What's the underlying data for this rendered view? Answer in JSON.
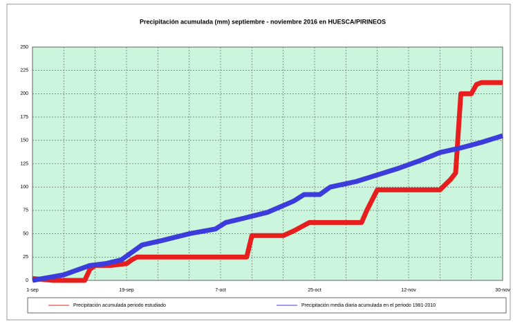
{
  "chart_data": {
    "type": "line",
    "title": "Precipitación acumulada (mm) septiembre - noviembre 2016 en HUESCA/PIRINEOS",
    "xlim": [
      0,
      90
    ],
    "xticks": [
      {
        "value": 0,
        "label": "1-sep"
      },
      {
        "value": 18,
        "label": "19-sep"
      },
      {
        "value": 36,
        "label": "7-oct"
      },
      {
        "value": 54,
        "label": "25-oct"
      },
      {
        "value": 72,
        "label": "12-nov"
      },
      {
        "value": 90,
        "label": "30-nov"
      }
    ],
    "xgrid": [
      6,
      12,
      24,
      30,
      42,
      48,
      60,
      66,
      78,
      84
    ],
    "ylim": [
      0,
      250
    ],
    "yticks": [
      0,
      25,
      50,
      75,
      100,
      125,
      150,
      175,
      200,
      225,
      250
    ],
    "grid": true,
    "series": [
      {
        "name": "Precipitación acumulada periodo estudiado",
        "color": "#e61e1e",
        "x": [
          0,
          2,
          4,
          8,
          10,
          11,
          12,
          15,
          18,
          19,
          20,
          41,
          42,
          48,
          50,
          53,
          63,
          64,
          66,
          78,
          80,
          81,
          82,
          84,
          85,
          86,
          90
        ],
        "values": [
          2,
          1,
          0,
          0,
          0,
          12,
          16,
          16,
          18,
          22,
          25,
          25,
          48,
          48,
          53,
          62,
          62,
          75,
          97,
          97,
          108,
          115,
          200,
          200,
          210,
          212,
          212
        ]
      },
      {
        "name": "Precipitación media diaria acumulada en el periodo 1981-2010",
        "color": "#3c3cdc",
        "x": [
          0,
          3,
          6,
          9,
          11,
          14,
          17,
          19,
          21,
          25,
          30,
          35,
          37,
          40,
          45,
          50,
          52,
          55,
          57,
          62,
          66,
          70,
          74,
          78,
          82,
          86,
          90
        ],
        "values": [
          0,
          3,
          6,
          12,
          16,
          18,
          22,
          30,
          38,
          43,
          50,
          55,
          62,
          66,
          73,
          85,
          92,
          92,
          100,
          106,
          113,
          120,
          128,
          137,
          142,
          148,
          155
        ]
      }
    ]
  }
}
